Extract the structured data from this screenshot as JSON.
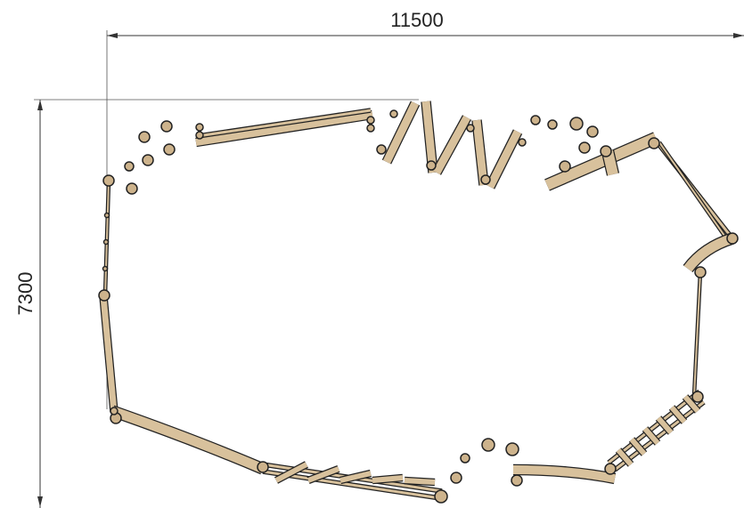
{
  "dimensions": {
    "width_label": "11500",
    "height_label": "7300"
  }
}
